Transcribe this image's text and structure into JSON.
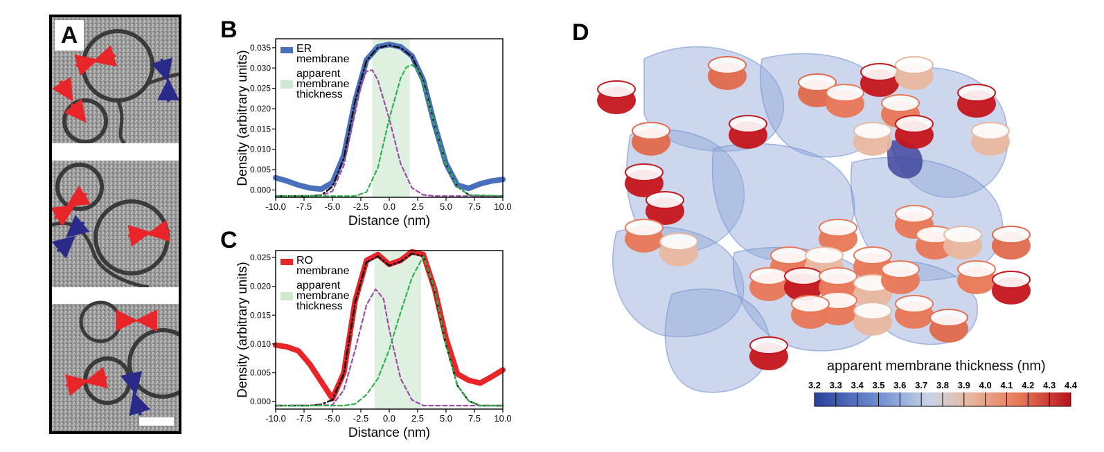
{
  "figure": {
    "panel_labels": {
      "a": "A",
      "b": "B",
      "c": "C",
      "d": "D"
    }
  },
  "chart_data": [
    {
      "id": "B",
      "type": "line",
      "xlabel": "Distance (nm)",
      "ylabel": "Density (arbitrary units)",
      "xlim": [
        -10,
        10
      ],
      "ylim": [
        -0.0018,
        0.0372
      ],
      "xticks": [
        "-10.0",
        "-7.5",
        "-5.0",
        "-2.5",
        "0.0",
        "2.5",
        "5.0",
        "7.5",
        "10.0"
      ],
      "yticks": [
        "0.000",
        "0.005",
        "0.010",
        "0.015",
        "0.020",
        "0.025",
        "0.030",
        "0.035"
      ],
      "legend": [
        "ER membrane",
        "apparent membrane thickness"
      ],
      "legend_position": "top-left",
      "shaded_band": [
        -1.5,
        1.8
      ],
      "series": [
        {
          "name": "ER membrane",
          "color": "#4a6fbd",
          "style": "thick",
          "x": [
            -10,
            -9,
            -8,
            -7,
            -6,
            -5,
            -4,
            -3,
            -2,
            -1,
            0,
            1,
            2,
            3,
            4,
            5,
            6,
            7,
            8,
            9,
            10
          ],
          "y": [
            0.003,
            0.0022,
            0.0012,
            0.0005,
            0.0002,
            0.0018,
            0.0085,
            0.022,
            0.032,
            0.0352,
            0.0358,
            0.0352,
            0.033,
            0.027,
            0.016,
            0.0065,
            0.0012,
            0.0004,
            0.0015,
            0.0022,
            0.0026
          ]
        },
        {
          "color": "#111111",
          "style": "dashdot",
          "x": [
            -10,
            -9,
            -8,
            -7,
            -6,
            -5,
            -4,
            -3,
            -2,
            -1,
            0,
            1,
            2,
            3,
            4,
            5,
            6,
            7,
            8,
            9,
            10
          ],
          "y": [
            -0.0015,
            -0.0015,
            -0.0015,
            -0.0015,
            -0.0013,
            0.0008,
            0.0078,
            0.0218,
            0.0318,
            0.035,
            0.0356,
            0.035,
            0.0328,
            0.0268,
            0.016,
            0.0063,
            0.0008,
            -0.0012,
            -0.0015,
            -0.0015,
            -0.0015
          ]
        },
        {
          "color": "#9b4aa6",
          "style": "dashed",
          "x": [
            -10,
            -6,
            -5,
            -4,
            -3,
            -2.5,
            -2,
            -1.5,
            -1,
            0,
            1,
            2,
            3,
            4,
            10
          ],
          "y": [
            -0.0015,
            -0.0014,
            -0.0003,
            0.006,
            0.019,
            0.0255,
            0.0292,
            0.0295,
            0.027,
            0.0175,
            0.0065,
            0.0005,
            -0.0012,
            -0.0015,
            -0.0015
          ]
        },
        {
          "color": "#2eb24a",
          "style": "dashed",
          "x": [
            -10,
            -3,
            -2,
            -1,
            0,
            1,
            1.5,
            2,
            2.5,
            3,
            4,
            5,
            6,
            7,
            10
          ],
          "y": [
            -0.0015,
            -0.0015,
            -0.0005,
            0.0055,
            0.0175,
            0.0275,
            0.0302,
            0.0308,
            0.0295,
            0.0262,
            0.016,
            0.0063,
            0.0008,
            -0.0012,
            -0.0015
          ]
        }
      ]
    },
    {
      "id": "C",
      "type": "line",
      "xlabel": "Distance (nm)",
      "ylabel": "Density (arbitrary units)",
      "xlim": [
        -10,
        10
      ],
      "ylim": [
        -0.0013,
        0.0262
      ],
      "xticks": [
        "-10.0",
        "-7.5",
        "-5.0",
        "-2.5",
        "0.0",
        "2.5",
        "5.0",
        "7.5",
        "10.0"
      ],
      "yticks": [
        "0.000",
        "0.005",
        "0.010",
        "0.015",
        "0.020",
        "0.025"
      ],
      "legend": [
        "RO membrane",
        "apparent membrane thickness"
      ],
      "legend_position": "top-left",
      "shaded_band": [
        -1.3,
        2.8
      ],
      "series": [
        {
          "name": "RO membrane",
          "color": "#e8262a",
          "style": "thick",
          "x": [
            -10,
            -9,
            -8,
            -7,
            -6,
            -5,
            -4,
            -3,
            -2,
            -1,
            0,
            1,
            2,
            3,
            4,
            5,
            6,
            7,
            8,
            9,
            10
          ],
          "y": [
            0.0098,
            0.0095,
            0.0088,
            0.0065,
            0.0035,
            0.0005,
            0.005,
            0.0175,
            0.0245,
            0.0255,
            0.0238,
            0.0245,
            0.026,
            0.0255,
            0.0195,
            0.011,
            0.0048,
            0.0037,
            0.0032,
            0.0043,
            0.0055
          ]
        },
        {
          "color": "#111111",
          "style": "dashdot",
          "x": [
            -10,
            -9,
            -8,
            -7,
            -6,
            -5,
            -4,
            -3,
            -2,
            -1,
            0,
            1,
            2,
            3,
            4,
            5,
            6,
            7,
            8,
            9,
            10
          ],
          "y": [
            -0.0007,
            -0.0007,
            -0.0007,
            -0.0007,
            -0.0005,
            0.0003,
            0.0048,
            0.0172,
            0.0242,
            0.0252,
            0.0236,
            0.0243,
            0.0257,
            0.0252,
            0.0192,
            0.0098,
            0.0028,
            0.0001,
            -0.0007,
            -0.0007,
            -0.0007
          ]
        },
        {
          "color": "#9b4aa6",
          "style": "dashed",
          "x": [
            -10,
            -5,
            -4,
            -3,
            -2,
            -1.2,
            -0.5,
            0,
            1,
            2,
            3,
            10
          ],
          "y": [
            -0.0007,
            -0.0006,
            0.002,
            0.009,
            0.0168,
            0.0195,
            0.0178,
            0.0125,
            0.004,
            0.0003,
            -0.0007,
            -0.0007
          ]
        },
        {
          "color": "#2eb24a",
          "style": "dashed",
          "x": [
            -10,
            -4,
            -3,
            -2,
            -1,
            0,
            1,
            2,
            3,
            4,
            5,
            6,
            7,
            8,
            10
          ],
          "y": [
            -0.0007,
            -0.0007,
            -0.0004,
            0.0012,
            0.004,
            0.009,
            0.0155,
            0.0215,
            0.0252,
            0.0195,
            0.0098,
            0.0028,
            0.0001,
            -0.0007,
            -0.0007
          ]
        }
      ]
    },
    {
      "id": "D-colorbar",
      "type": "heatmap",
      "title": "apparent membrane thickness (nm)",
      "range": [
        3.2,
        4.4
      ],
      "ticks": [
        "3.2",
        "3.3",
        "3.4",
        "3.5",
        "3.6",
        "3.7",
        "3.8",
        "3.9",
        "4.0",
        "4.1",
        "4.2",
        "4.3",
        "4.4"
      ],
      "colors": [
        "#2a3f9a",
        "#6f8fd0",
        "#c9d4e6",
        "#e9b8a0",
        "#e87856",
        "#b8121e"
      ]
    }
  ]
}
